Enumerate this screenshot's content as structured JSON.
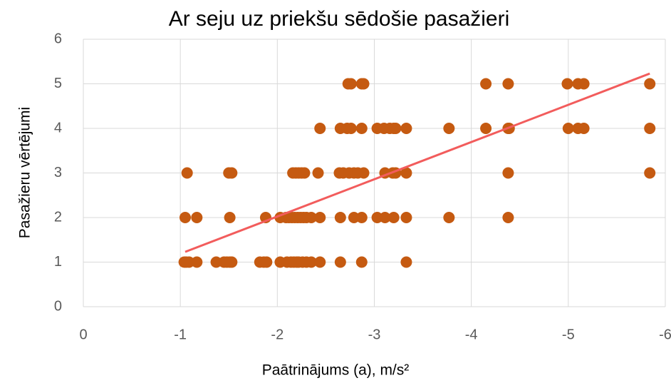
{
  "chart_data": {
    "type": "scatter",
    "title": "Ar seju uz priekšu sēdošie pasažieri",
    "x_label": "Paātrinājums (a), m/s²",
    "y_label": "Pasažieru vērtējumi",
    "color": "#c55a11",
    "x": [
      -1.04,
      -1.06,
      -1.09,
      -1.17,
      -1.37,
      -1.45,
      -1.48,
      -1.51,
      -1.53,
      -1.82,
      -1.86,
      -1.89,
      -2.03,
      -2.1,
      -2.14,
      -2.17,
      -2.2,
      -2.22,
      -2.26,
      -2.3,
      -2.35,
      -2.44,
      -2.65,
      -2.87,
      -3.33,
      -1.05,
      -1.17,
      -1.51,
      -1.88,
      -2.03,
      -2.09,
      -2.12,
      -2.15,
      -2.18,
      -2.21,
      -2.24,
      -2.27,
      -2.3,
      -2.35,
      -2.44,
      -2.65,
      -2.79,
      -2.87,
      -3.03,
      -3.11,
      -3.2,
      -3.33,
      -3.77,
      -4.38,
      -1.07,
      -1.5,
      -1.53,
      -2.16,
      -2.19,
      -2.22,
      -2.25,
      -2.28,
      -2.42,
      -2.64,
      -2.68,
      -2.74,
      -2.79,
      -2.83,
      -2.89,
      -3.11,
      -3.19,
      -3.22,
      -3.33,
      -4.38,
      -5.84,
      -2.44,
      -2.65,
      -2.72,
      -2.76,
      -2.87,
      -3.03,
      -3.1,
      -3.16,
      -3.2,
      -3.22,
      -3.33,
      -3.77,
      -4.15,
      -4.38,
      -4.39,
      -5.0,
      -5.1,
      -5.16,
      -5.84,
      -2.73,
      -2.76,
      -2.87,
      -2.89,
      -4.15,
      -4.38,
      -4.99,
      -5.1,
      -5.16,
      -5.84
    ],
    "values": [
      1,
      1,
      1,
      1,
      1,
      1,
      1,
      1,
      1,
      1,
      1,
      1,
      1,
      1,
      1,
      1,
      1,
      1,
      1,
      1,
      1,
      1,
      1,
      1,
      1,
      2,
      2,
      2,
      2,
      2,
      2,
      2,
      2,
      2,
      2,
      2,
      2,
      2,
      2,
      2,
      2,
      2,
      2,
      2,
      2,
      2,
      2,
      2,
      2,
      3,
      3,
      3,
      3,
      3,
      3,
      3,
      3,
      3,
      3,
      3,
      3,
      3,
      3,
      3,
      3,
      3,
      3,
      3,
      3,
      3,
      4,
      4,
      4,
      4,
      4,
      4,
      4,
      4,
      4,
      4,
      4,
      4,
      4,
      4,
      4,
      4,
      4,
      4,
      4,
      5,
      5,
      5,
      5,
      5,
      5,
      5,
      5,
      5,
      5
    ],
    "trendline": {
      "color": "#f25c5c",
      "x": [
        -1.05,
        -5.84
      ],
      "y": [
        1.23,
        5.23
      ]
    },
    "xlim": [
      0,
      -6
    ],
    "xticks": [
      0,
      -1,
      -2,
      -3,
      -4,
      -5,
      -6
    ],
    "ylim": [
      0,
      6
    ],
    "yticks": [
      0,
      1,
      2,
      3,
      4,
      5,
      6
    ],
    "grid": true
  }
}
